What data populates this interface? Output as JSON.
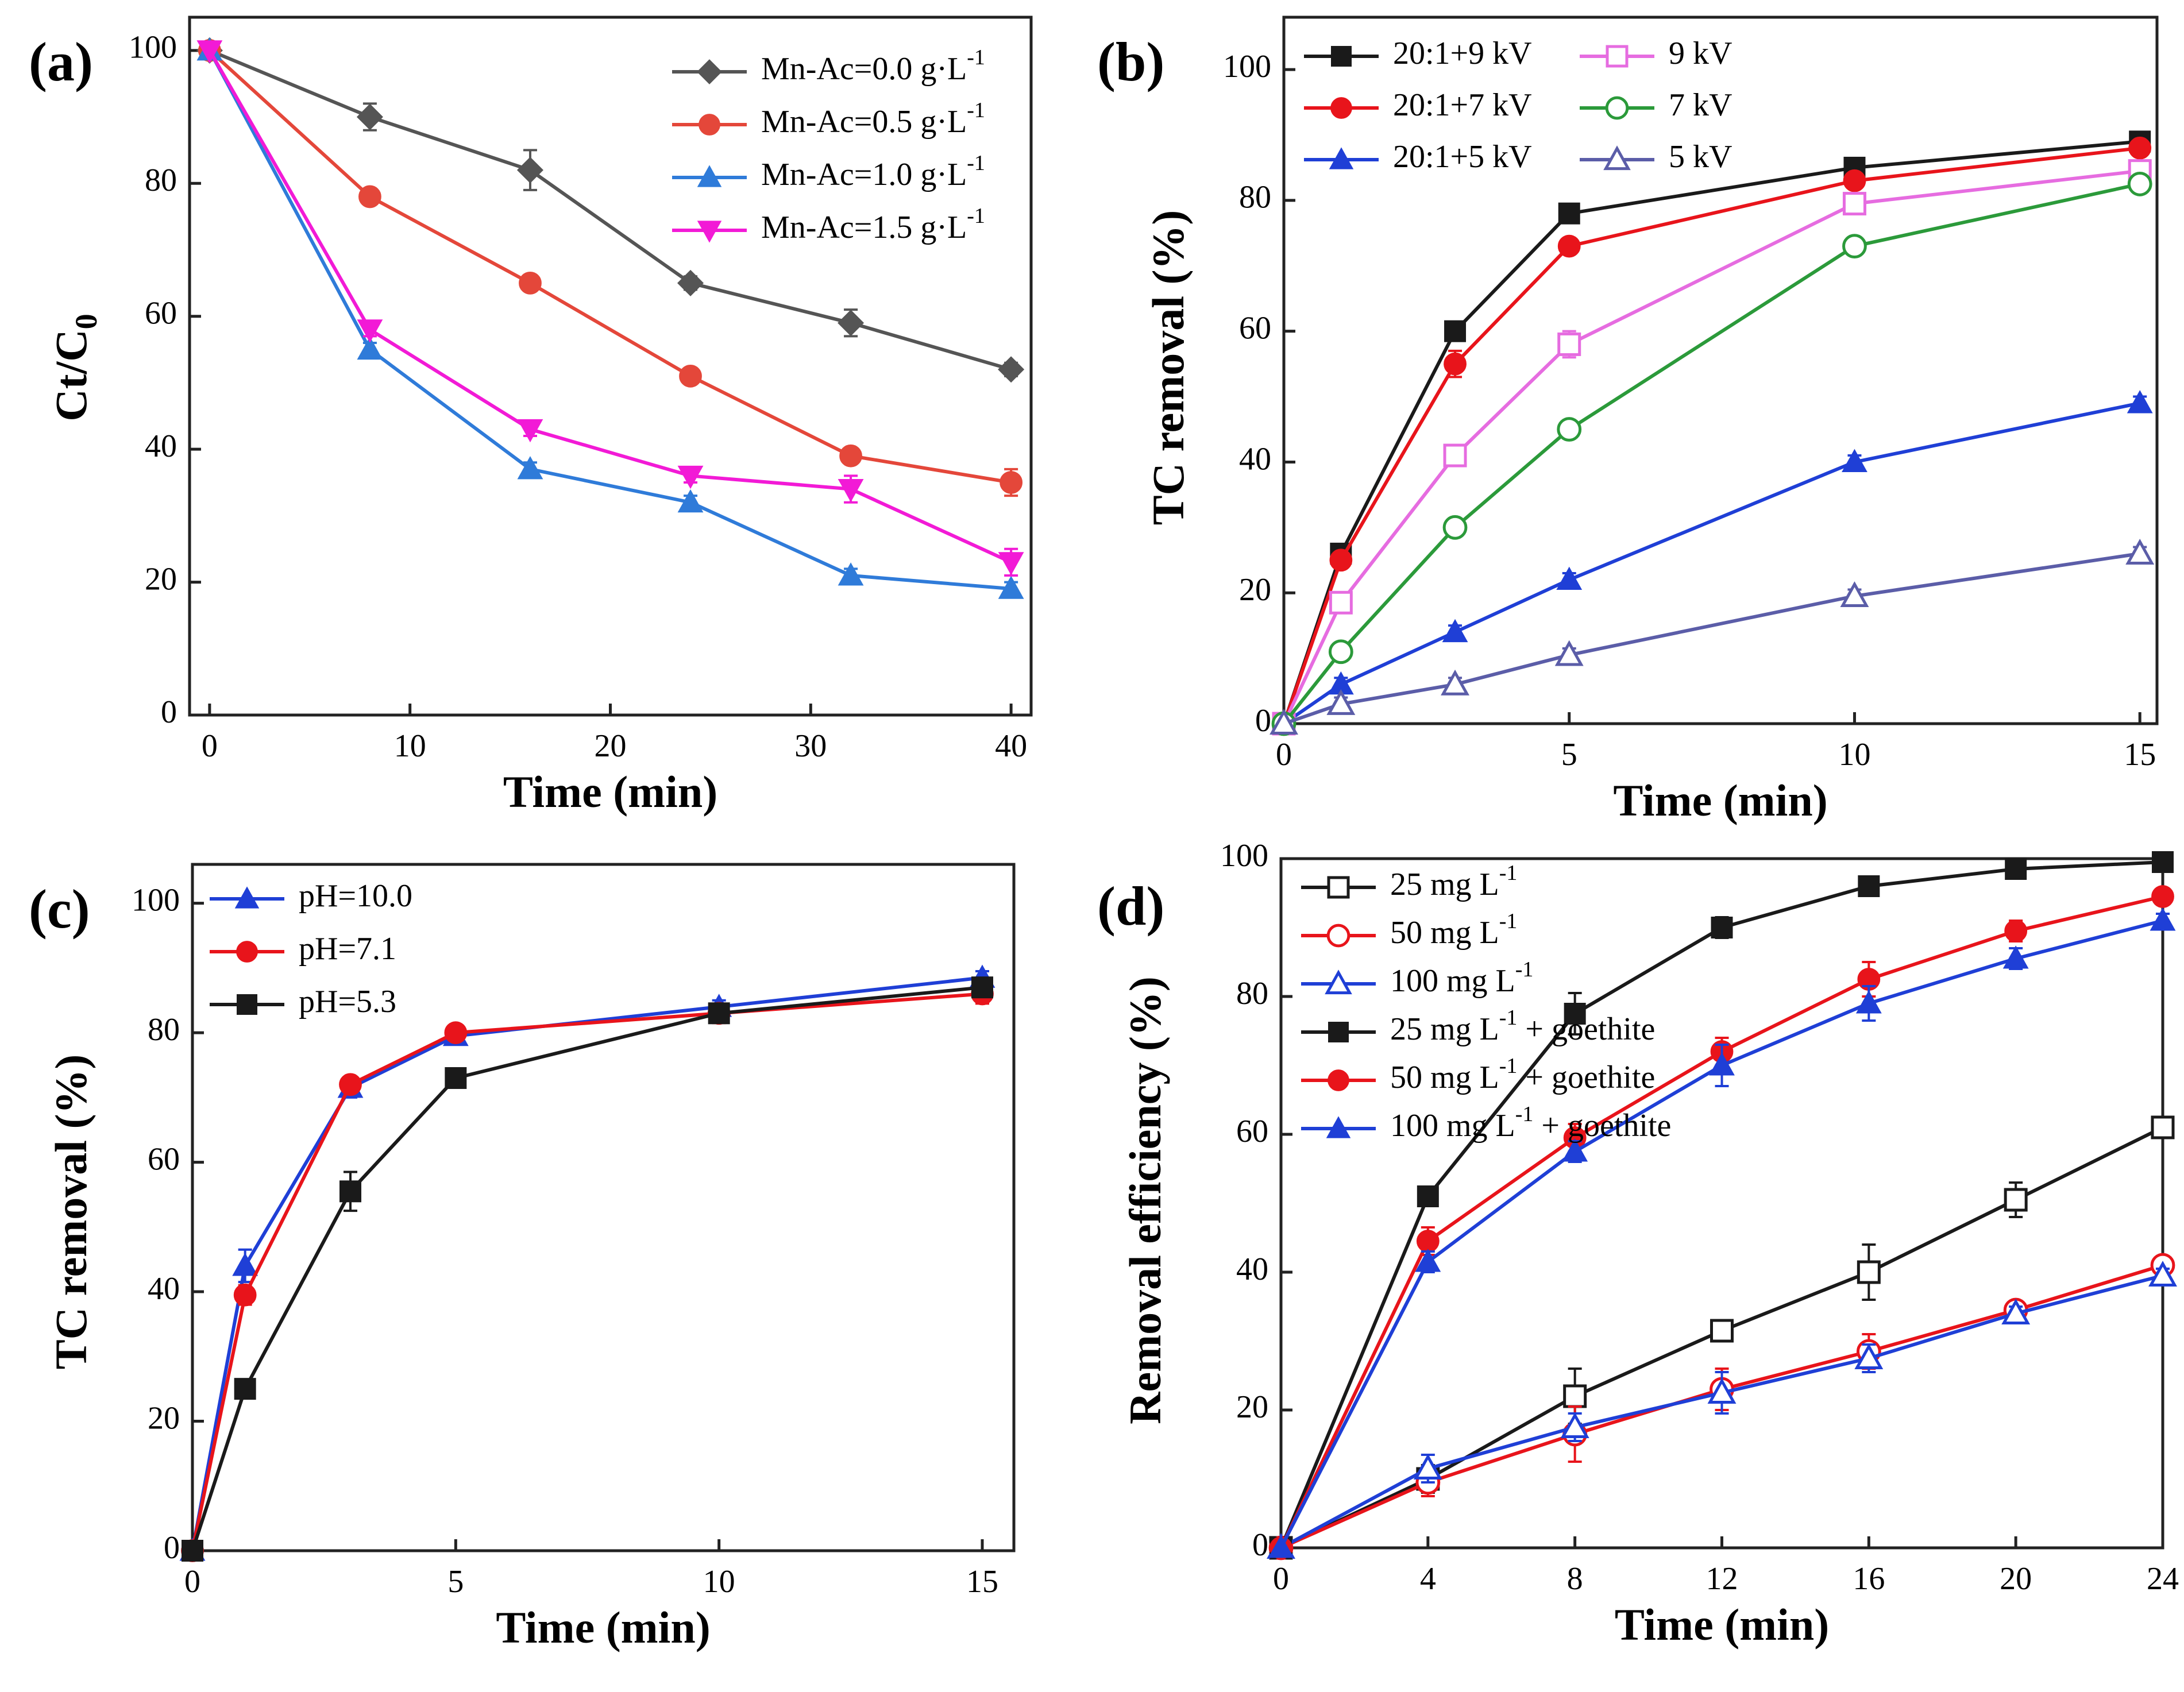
{
  "figure": {
    "colors": {
      "black": "#1a1a1a",
      "gray": "#555555",
      "red": "#e4473a",
      "red_bright": "#e8141b",
      "blue": "#2f7bd9",
      "blue_dark": "#1f3fd6",
      "magenta": "#f21ad6",
      "pink": "#e66ce0",
      "green": "#2b9a3a",
      "navy": "#5b5da8"
    }
  },
  "chart_data": [
    {
      "panel": "(a)",
      "type": "line",
      "xlabel": "Time (min)",
      "ylabel": "Ct/C0",
      "xlim": [
        -1,
        41
      ],
      "ylim": [
        0,
        105
      ],
      "xticks": [
        0,
        10,
        20,
        30,
        40
      ],
      "yticks": [
        0,
        20,
        40,
        60,
        80,
        100
      ],
      "legend_position": "top-right",
      "x": [
        0,
        8,
        16,
        24,
        32,
        40
      ],
      "series": [
        {
          "name": "Mn-Ac=0.0 g·L-1",
          "base": "Mn-Ac=0.0 g·L",
          "sup": "-1",
          "color": "#555555",
          "marker": "diamond",
          "values": [
            100,
            90,
            82,
            65,
            59,
            52
          ],
          "errors": [
            0,
            2,
            3,
            1,
            2,
            1
          ]
        },
        {
          "name": "Mn-Ac=0.5 g·L-1",
          "base": "Mn-Ac=0.5 g·L",
          "sup": "-1",
          "color": "#e4473a",
          "marker": "circle",
          "values": [
            100,
            78,
            65,
            51,
            39,
            35
          ],
          "errors": [
            0,
            1,
            1,
            1,
            1,
            2
          ]
        },
        {
          "name": "Mn-Ac=1.0 g·L-1",
          "base": "Mn-Ac=1.0 g·L",
          "sup": "-1",
          "color": "#2f7bd9",
          "marker": "triangle",
          "values": [
            100,
            55,
            37,
            32,
            21,
            19
          ],
          "errors": [
            0,
            1,
            1,
            1,
            1,
            1
          ]
        },
        {
          "name": "Mn-Ac=1.5 g·L-1",
          "base": "Mn-Ac=1.5 g·L",
          "sup": "-1",
          "color": "#f21ad6",
          "marker": "triangle-down",
          "values": [
            100,
            58,
            43,
            36,
            34,
            23
          ],
          "errors": [
            0,
            1,
            1,
            1,
            2,
            2
          ]
        }
      ]
    },
    {
      "panel": "(b)",
      "type": "line",
      "xlabel": "Time (min)",
      "ylabel": "TC removal (%)",
      "xlim": [
        0,
        15.3
      ],
      "ylim": [
        0,
        108
      ],
      "xticks": [
        0,
        5,
        10,
        15
      ],
      "yticks": [
        0,
        20,
        40,
        60,
        80,
        100
      ],
      "legend_position": "top-left",
      "legend_columns": 2,
      "x": [
        0,
        1,
        3,
        5,
        10,
        15
      ],
      "series": [
        {
          "name": "20:1+9 kV",
          "color": "#1a1a1a",
          "marker": "square",
          "values": [
            0,
            26,
            60,
            78,
            85,
            89
          ],
          "errors": [
            0,
            1,
            1,
            1,
            1,
            1
          ]
        },
        {
          "name": "20:1+7 kV",
          "color": "#e8141b",
          "marker": "circle",
          "values": [
            0,
            25,
            55,
            73,
            83,
            88
          ],
          "errors": [
            0,
            1,
            2,
            1,
            1,
            1
          ]
        },
        {
          "name": "20:1+5 kV",
          "color": "#1f3fd6",
          "marker": "triangle",
          "values": [
            0,
            6,
            14,
            22,
            40,
            49
          ],
          "errors": [
            0,
            1,
            1,
            1,
            1,
            1
          ]
        },
        {
          "name": "9 kV",
          "color": "#e66ce0",
          "marker": "square-open",
          "values": [
            0,
            18.5,
            41,
            58,
            79.5,
            84.5
          ],
          "errors": [
            0,
            1,
            1,
            2,
            1,
            1
          ]
        },
        {
          "name": "7 kV",
          "color": "#2b9a3a",
          "marker": "circle-open",
          "values": [
            0,
            11,
            30,
            45,
            73,
            82.5
          ],
          "errors": [
            0,
            1,
            1,
            1,
            1,
            1
          ]
        },
        {
          "name": "5 kV",
          "color": "#5b5da8",
          "marker": "triangle-open",
          "values": [
            0,
            3,
            6,
            10.5,
            19.5,
            26
          ],
          "errors": [
            0,
            1,
            1,
            1,
            1,
            1
          ]
        }
      ]
    },
    {
      "panel": "(c)",
      "type": "line",
      "xlabel": "Time (min)",
      "ylabel": "TC removal (%)",
      "xlim": [
        0,
        15.6
      ],
      "ylim": [
        0,
        106
      ],
      "xticks": [
        0,
        5,
        10,
        15
      ],
      "yticks": [
        0,
        20,
        40,
        60,
        80,
        100
      ],
      "legend_position": "top-left",
      "x": [
        0,
        1,
        3,
        5,
        10,
        15
      ],
      "series": [
        {
          "name": "pH=10.0",
          "color": "#1f3fd6",
          "marker": "triangle",
          "values": [
            0,
            44,
            71.5,
            79.5,
            84,
            88.5
          ],
          "errors": [
            0,
            2.5,
            1.5,
            1,
            1,
            1
          ]
        },
        {
          "name": "pH=7.1",
          "color": "#e8141b",
          "marker": "circle",
          "values": [
            0,
            39.5,
            72,
            80,
            83,
            86
          ],
          "errors": [
            0,
            1.5,
            1,
            1,
            1.5,
            1.5
          ]
        },
        {
          "name": "pH=5.3",
          "color": "#1a1a1a",
          "marker": "square",
          "values": [
            0,
            25,
            55.5,
            73,
            83,
            87
          ],
          "errors": [
            0,
            1,
            3,
            1,
            1,
            1
          ]
        }
      ]
    },
    {
      "panel": "(d)",
      "type": "line",
      "xlabel": "Time (min)",
      "ylabel": "Removal efficiency (%)",
      "xlim": [
        0,
        24
      ],
      "ylim": [
        0,
        100
      ],
      "xticks": [
        0,
        4,
        8,
        12,
        16,
        20,
        24
      ],
      "yticks": [
        0,
        20,
        40,
        60,
        80,
        100
      ],
      "legend_position": "top-left",
      "x": [
        0,
        4,
        8,
        12,
        16,
        20,
        24
      ],
      "series": [
        {
          "name": "25 mg L-1",
          "base": "25 mg L",
          "sup": "-1",
          "tail": "",
          "color": "#1a1a1a",
          "marker": "square-open",
          "values": [
            0,
            10,
            22,
            31.5,
            40,
            50.5,
            61
          ],
          "errors": [
            0,
            2,
            4,
            1.5,
            4,
            2.5,
            1
          ]
        },
        {
          "name": "50 mg L-1",
          "base": "50 mg L",
          "sup": "-1",
          "tail": "",
          "color": "#e8141b",
          "marker": "circle-open",
          "values": [
            0,
            9.5,
            16.5,
            23,
            28.5,
            34.5,
            41
          ],
          "errors": [
            0,
            2,
            4,
            3,
            2.5,
            1,
            1
          ]
        },
        {
          "name": "100 mg L-1",
          "base": "100 mg L",
          "sup": "-1",
          "tail": "",
          "color": "#1f3fd6",
          "marker": "triangle-open",
          "values": [
            0,
            11.5,
            17.5,
            22.5,
            27.5,
            34,
            39.5
          ],
          "errors": [
            0,
            2,
            2,
            3,
            2,
            1,
            1
          ]
        },
        {
          "name": "25 mg L-1 + goethite",
          "base": "25 mg L",
          "sup": "-1",
          "tail": " + goethite",
          "color": "#1a1a1a",
          "marker": "square",
          "values": [
            0,
            51,
            77.5,
            90,
            96,
            98.5,
            99.5
          ],
          "errors": [
            0,
            1,
            3,
            1.5,
            1,
            1,
            0.5
          ]
        },
        {
          "name": "50 mg L-1 + goethite",
          "base": "50 mg L",
          "sup": "-1",
          "tail": " + goethite",
          "color": "#e8141b",
          "marker": "circle",
          "values": [
            0,
            44.5,
            59.5,
            72,
            82.5,
            89.5,
            94.5
          ],
          "errors": [
            0,
            2,
            2,
            2,
            2.5,
            1.5,
            1
          ]
        },
        {
          "name": "100 mg L-1 + goethite",
          "base": "100 mg L",
          "sup": "-1",
          "tail": " + goethite",
          "color": "#1f3fd6",
          "marker": "triangle",
          "values": [
            0,
            41.5,
            57.5,
            70,
            79,
            85.5,
            91
          ],
          "errors": [
            0,
            1.5,
            1.5,
            3,
            2.5,
            1.5,
            1
          ]
        }
      ]
    }
  ]
}
